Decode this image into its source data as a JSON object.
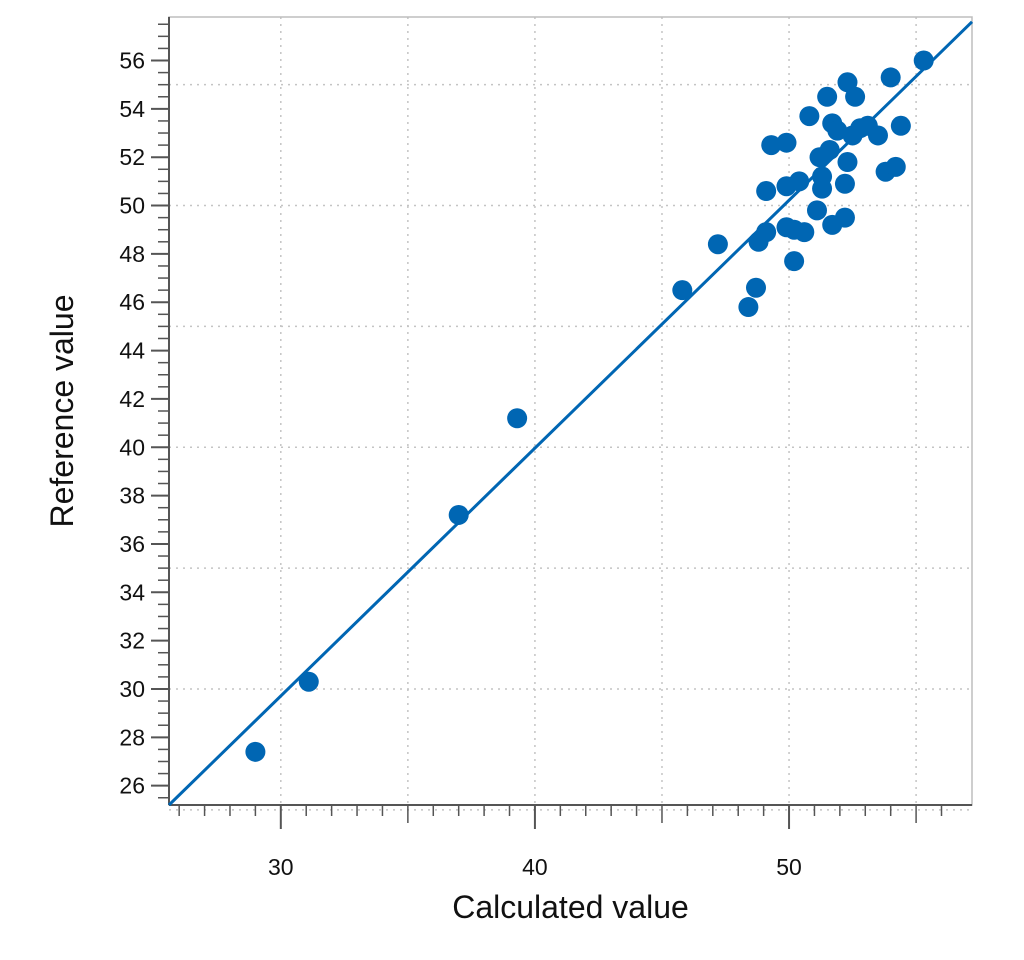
{
  "colors": {
    "accent": "#0066b3",
    "grid": "#c4c4c4",
    "frame": "#bdbdbd",
    "axis": "#555555"
  },
  "chart_data": {
    "type": "scatter",
    "title": "",
    "xlabel": "Calculated value",
    "ylabel": "Reference value",
    "xlim": [
      25.6,
      57.2
    ],
    "ylim": [
      25.2,
      57.8
    ],
    "x_ticks": [
      30,
      40,
      50
    ],
    "y_ticks": [
      26,
      28,
      30,
      32,
      34,
      36,
      38,
      40,
      42,
      44,
      46,
      48,
      50,
      52,
      54,
      56
    ],
    "grid": true,
    "fit_line": {
      "x": [
        25.6,
        57.2
      ],
      "y": [
        25.2,
        57.6
      ]
    },
    "series": [
      {
        "points": [
          [
            29.0,
            27.4
          ],
          [
            31.1,
            30.3
          ],
          [
            37.0,
            37.2
          ],
          [
            39.3,
            41.2
          ],
          [
            45.8,
            46.5
          ],
          [
            47.2,
            48.4
          ],
          [
            48.4,
            45.8
          ],
          [
            48.7,
            46.6
          ],
          [
            48.8,
            48.5
          ],
          [
            49.1,
            48.9
          ],
          [
            49.1,
            50.6
          ],
          [
            49.3,
            52.5
          ],
          [
            49.9,
            52.6
          ],
          [
            49.9,
            49.1
          ],
          [
            49.9,
            50.8
          ],
          [
            50.2,
            47.7
          ],
          [
            50.2,
            49.0
          ],
          [
            50.4,
            51.0
          ],
          [
            50.6,
            48.9
          ],
          [
            50.8,
            53.7
          ],
          [
            51.1,
            49.8
          ],
          [
            51.2,
            52.0
          ],
          [
            51.3,
            50.7
          ],
          [
            51.3,
            51.2
          ],
          [
            51.5,
            54.5
          ],
          [
            51.6,
            52.3
          ],
          [
            51.7,
            53.4
          ],
          [
            51.7,
            49.2
          ],
          [
            51.9,
            53.1
          ],
          [
            52.2,
            49.5
          ],
          [
            52.2,
            50.9
          ],
          [
            52.3,
            55.1
          ],
          [
            52.3,
            51.8
          ],
          [
            52.5,
            52.9
          ],
          [
            52.6,
            54.5
          ],
          [
            52.8,
            53.2
          ],
          [
            53.1,
            53.3
          ],
          [
            53.5,
            52.9
          ],
          [
            53.8,
            51.4
          ],
          [
            54.0,
            55.3
          ],
          [
            54.2,
            51.6
          ],
          [
            54.4,
            53.3
          ],
          [
            55.3,
            56.0
          ]
        ]
      }
    ]
  }
}
